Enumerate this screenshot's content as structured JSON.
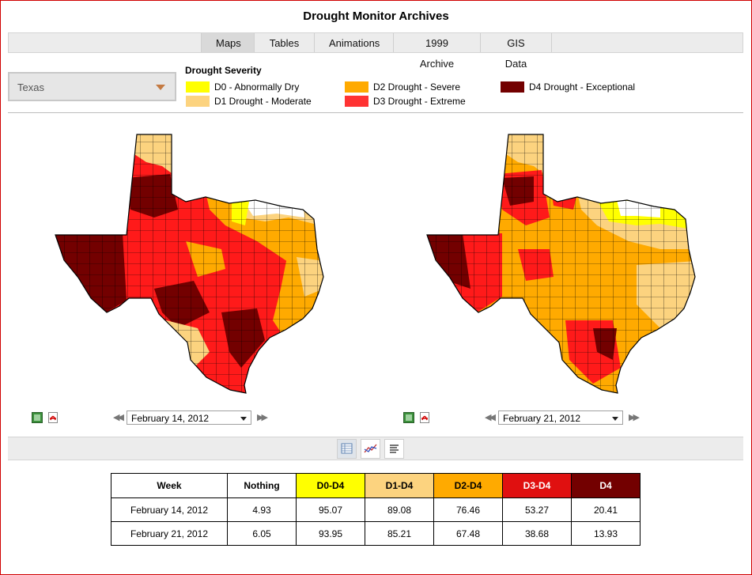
{
  "page": {
    "title": "Drought Monitor Archives"
  },
  "tabs": [
    {
      "label": "Maps",
      "active": true
    },
    {
      "label": "Tables",
      "active": false
    },
    {
      "label": "Animations",
      "active": false
    },
    {
      "label": "1999 Archive",
      "active": false
    },
    {
      "label": "GIS Data",
      "active": false
    }
  ],
  "state_select": {
    "value": "Texas"
  },
  "legend": {
    "title": "Drought Severity",
    "items": [
      {
        "label": "D0 - Abnormally Dry",
        "color": "#ffff00"
      },
      {
        "label": "D1 Drought - Moderate",
        "color": "#fcd37f"
      },
      {
        "label": "D2 Drought - Severe",
        "color": "#ffaa00"
      },
      {
        "label": "D3 Drought - Extreme",
        "color": "#ff3333"
      },
      {
        "label": "D4 Drought - Exceptional",
        "color": "#730000"
      }
    ]
  },
  "maps": [
    {
      "date": "February 14, 2012",
      "dominant": "D3"
    },
    {
      "date": "February 21, 2012",
      "dominant": "D2"
    }
  ],
  "icons": {
    "image": "image-icon",
    "pdf": "pdf-icon",
    "prev": "previous-arrows-icon",
    "next": "next-arrows-icon",
    "table_view": "table-view-icon",
    "chart_view": "chart-view-icon",
    "text_view": "text-view-icon"
  },
  "table": {
    "headers": [
      "Week",
      "Nothing",
      "D0-D4",
      "D1-D4",
      "D2-D4",
      "D3-D4",
      "D4"
    ],
    "header_colors": [
      "#ffffff",
      "#ffffff",
      "#ffff00",
      "#fcd37f",
      "#ffaa00",
      "#e01010",
      "#730000"
    ],
    "rows": [
      [
        "February 14, 2012",
        "4.93",
        "95.07",
        "89.08",
        "76.46",
        "53.27",
        "20.41"
      ],
      [
        "February 21, 2012",
        "6.05",
        "93.95",
        "85.21",
        "67.48",
        "38.68",
        "13.93"
      ]
    ]
  }
}
